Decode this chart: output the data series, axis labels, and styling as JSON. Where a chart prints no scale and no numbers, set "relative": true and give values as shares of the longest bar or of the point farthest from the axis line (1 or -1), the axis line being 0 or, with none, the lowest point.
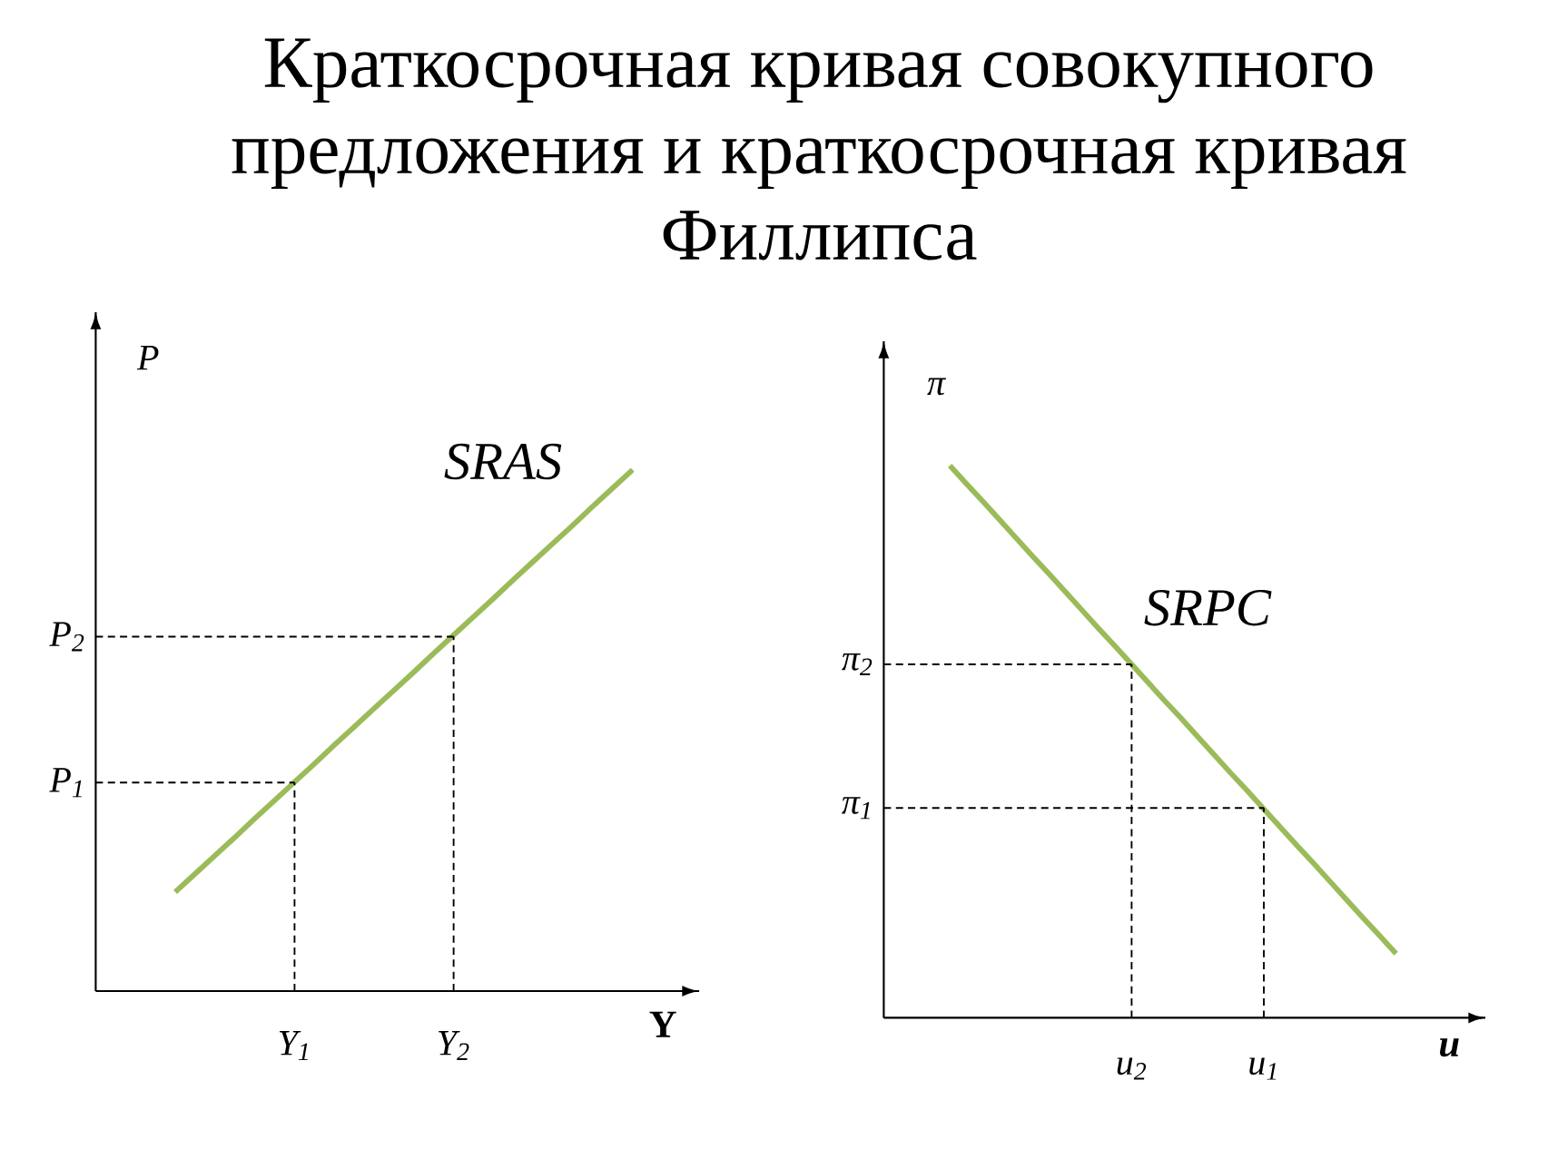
{
  "chart_data": [
    {
      "type": "line",
      "title": "Краткосрочная кривая совокупного предложения и краткосрочная кривая Филлипса",
      "xlabel": "Y",
      "ylabel": "P",
      "relative": true,
      "categories": [
        null,
        null,
        null,
        null,
        null,
        null,
        null,
        null,
        null,
        null,
        "Y$_{1}$",
        null,
        null,
        null,
        null,
        null,
        null,
        null,
        "Y$_{2}$",
        null,
        null,
        null,
        null,
        null,
        null,
        null,
        null,
        null
      ],
      "series": [
        {
          "name": "SRAS",
          "color": "#9bbb59",
          "values": [
            null,
            null,
            null,
            null,
            0.19,
            0.225,
            0.26,
            0.295,
            0.331,
            0.366,
            0.401,
            0.436,
            0.472,
            0.507,
            0.542,
            0.577,
            0.612,
            0.648,
            0.683,
            0.718,
            0.753,
            0.789,
            0.824,
            0.859,
            0.894,
            0.93,
            0.965,
            1
          ]
        },
        {
          "name": "P$_{1}$",
          "color": "#000000",
          "line_style": "dashed",
          "values": [
            0.4,
            0.4,
            0.4,
            0.4,
            0.4,
            0.4,
            0.4,
            0.4,
            0.4,
            0.4,
            0.4,
            null,
            null,
            null,
            null,
            null,
            null,
            null,
            null,
            null,
            null,
            null,
            null,
            null,
            null,
            null,
            null,
            null
          ]
        },
        {
          "name": "P$_{2}$",
          "color": "#000000",
          "line_style": "dashed",
          "values": [
            0.68,
            0.68,
            0.68,
            0.68,
            0.68,
            0.68,
            0.68,
            0.68,
            0.68,
            0.68,
            0.68,
            0.68,
            0.68,
            0.68,
            0.68,
            0.68,
            0.68,
            0.68,
            0.68,
            null,
            null,
            null,
            null,
            null,
            null,
            null,
            null,
            null
          ]
        },
        {
          "color": "#000000",
          "line_style": "dashed",
          "x": [
            "Y$_{1}$",
            "Y$_{1}$"
          ],
          "values": [
            0,
            0.4
          ]
        },
        {
          "color": "#000000",
          "line_style": "dashed",
          "x": [
            "Y$_{2}$",
            "Y$_{2}$"
          ],
          "values": [
            0,
            0.68
          ]
        }
      ]
    },
    {
      "type": "line",
      "xlabel": "u",
      "ylabel": "π",
      "relative": true,
      "categories": [
        null,
        null,
        null,
        null,
        null,
        null,
        null,
        null,
        null,
        null,
        null,
        null,
        null,
        null,
        null,
        "u$_{2}$",
        null,
        null,
        null,
        null,
        null,
        null,
        null,
        "u$_{1}$",
        null,
        null,
        null,
        null,
        null,
        null,
        null,
        null
      ],
      "series": [
        {
          "name": "SRPC",
          "color": "#9bbb59",
          "values": [
            null,
            null,
            null,
            null,
            1,
            0.967,
            0.935,
            0.902,
            0.869,
            0.836,
            0.804,
            0.771,
            0.738,
            0.705,
            0.673,
            0.64,
            0.607,
            0.574,
            0.542,
            0.509,
            0.476,
            0.443,
            0.411,
            0.378,
            0.345,
            0.312,
            0.28,
            0.247,
            0.214,
            0.181,
            0.149,
            0.116
          ]
        },
        {
          "name": "π$_{2}$",
          "color": "#000000",
          "line_style": "dashed",
          "values": [
            0.64,
            0.64,
            0.64,
            0.64,
            0.64,
            0.64,
            0.64,
            0.64,
            0.64,
            0.64,
            0.64,
            0.64,
            0.64,
            0.64,
            0.64,
            0.64,
            null,
            null,
            null,
            null,
            null,
            null,
            null,
            null,
            null,
            null,
            null,
            null,
            null,
            null,
            null,
            null
          ]
        },
        {
          "name": "π$_{1}$",
          "color": "#000000",
          "line_style": "dashed",
          "values": [
            0.38,
            0.38,
            0.38,
            0.38,
            0.38,
            0.38,
            0.38,
            0.38,
            0.38,
            0.38,
            0.38,
            0.38,
            0.38,
            0.38,
            0.38,
            0.38,
            0.38,
            0.38,
            0.38,
            0.38,
            0.38,
            0.38,
            0.38,
            0.38,
            null,
            null,
            null,
            null,
            null,
            null,
            null,
            null
          ]
        },
        {
          "color": "#000000",
          "line_style": "dashed",
          "x": [
            "u$_{2}$",
            "u$_{2}$"
          ],
          "values": [
            0,
            0.64
          ]
        },
        {
          "color": "#000000",
          "line_style": "dashed",
          "x": [
            "u$_{1}$",
            "u$_{1}$"
          ],
          "values": [
            0,
            0.38
          ]
        }
      ]
    }
  ]
}
